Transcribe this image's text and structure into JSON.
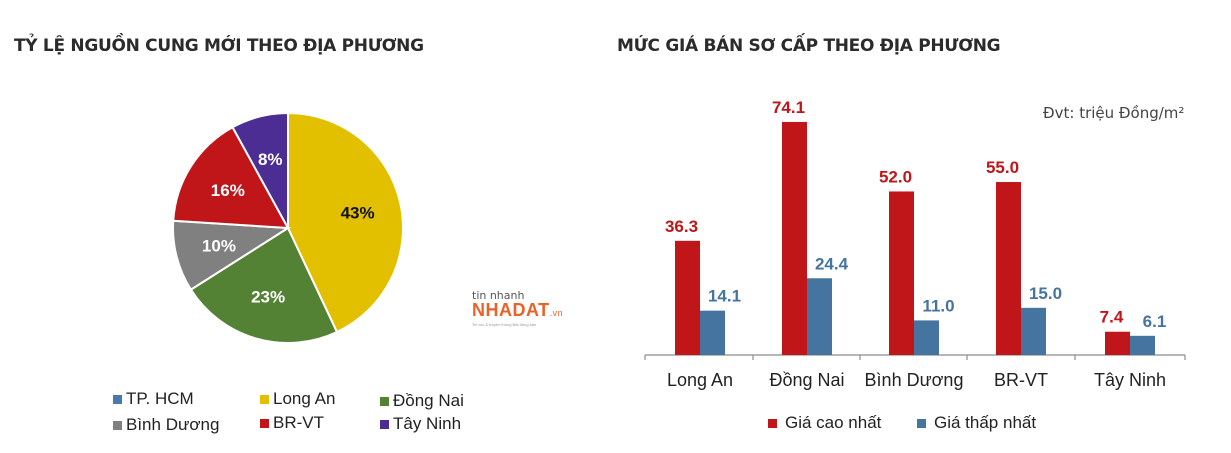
{
  "left_chart": {
    "title": "TỶ LỆ NGUỒN CUNG MỚI THEO ĐỊA PHƯƠNG"
  },
  "right_chart": {
    "title": "MỨC GIÁ BÁN SƠ CẤP THEO ĐỊA PHƯƠNG",
    "unit": "Đvt: triệu Đồng/m²"
  },
  "watermark": {
    "line1": "tin nhanh",
    "line2": "NHADAT",
    "line2_suffix": ".vn",
    "line3": "Tin tức & truyền thông Bất động sản"
  },
  "pie_legend": [
    {
      "label": "TP. HCM",
      "color": "#4a7aaa"
    },
    {
      "label": "Long An",
      "color": "#e2c000"
    },
    {
      "label": "Đồng Nai",
      "color": "#548235"
    },
    {
      "label": "Bình Dương",
      "color": "#808080"
    },
    {
      "label": "BR-VT",
      "color": "#c0161a"
    },
    {
      "label": "Tây Ninh",
      "color": "#4b2d94"
    }
  ],
  "bar_legend": [
    {
      "label": "Giá cao nhất",
      "color": "#c0161a"
    },
    {
      "label": "Giá thấp nhất",
      "color": "#4674a0"
    }
  ],
  "chart_data": [
    {
      "type": "pie",
      "title": "TỶ LỆ NGUỒN CUNG MỚI THEO ĐỊA PHƯƠNG",
      "categories": [
        "Long An",
        "Đồng Nai",
        "Bình Dương",
        "BR-VT",
        "Tây Ninh",
        "TP. HCM"
      ],
      "values": [
        43,
        23,
        10,
        16,
        8,
        0
      ],
      "labels": [
        "43%",
        "23%",
        "10%",
        "16%",
        "8%",
        ""
      ],
      "colors": [
        "#e2c000",
        "#548235",
        "#808080",
        "#c0161a",
        "#4b2d94",
        "#4a7aaa"
      ],
      "legend_position": "bottom"
    },
    {
      "type": "bar",
      "title": "MỨC GIÁ BÁN SƠ CẤP THEO ĐỊA PHƯƠNG",
      "categories": [
        "Long An",
        "Đồng Nai",
        "Bình Dương",
        "BR-VT",
        "Tây Ninh"
      ],
      "series": [
        {
          "name": "Giá cao nhất",
          "values": [
            36.3,
            74.1,
            52.0,
            55.0,
            7.4
          ],
          "labels": [
            "36.3",
            "74.1",
            "52.0",
            "55.0",
            "7.4"
          ],
          "color": "#c0161a"
        },
        {
          "name": "Giá thấp nhất",
          "values": [
            14.1,
            24.4,
            11.0,
            15.0,
            6.1
          ],
          "labels": [
            "14.1",
            "24.4",
            "11.0",
            "15.0",
            "6.1"
          ],
          "color": "#4674a0"
        }
      ],
      "xlabel": "",
      "ylabel": "Đvt: triệu Đồng/m²",
      "grid": false,
      "legend_position": "bottom"
    }
  ]
}
